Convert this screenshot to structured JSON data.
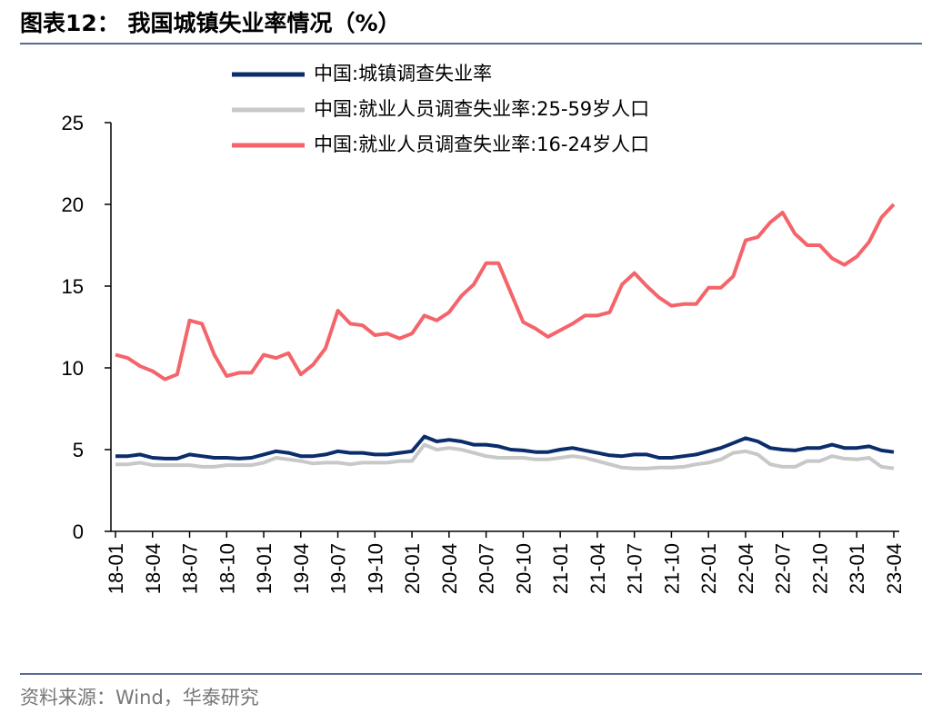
{
  "chart_data": {
    "type": "line",
    "title": "图表12：  我国城镇失业率情况（%）",
    "source": "资料来源：Wind，华泰研究",
    "categories": [
      "18-01",
      null,
      null,
      "18-04",
      null,
      null,
      "18-07",
      null,
      null,
      "18-10",
      null,
      null,
      "19-01",
      null,
      null,
      "19-04",
      null,
      null,
      "19-07",
      null,
      null,
      "19-10",
      null,
      null,
      "20-01",
      null,
      null,
      "20-04",
      null,
      null,
      "20-07",
      null,
      null,
      "20-10",
      null,
      null,
      "21-01",
      null,
      null,
      "21-04",
      null,
      null,
      "21-07",
      null,
      null,
      "21-10",
      null,
      null,
      "22-01",
      null,
      null,
      "22-04",
      null,
      null,
      "22-07",
      null,
      null,
      "22-10",
      null,
      null,
      "23-01",
      null,
      null,
      "23-04"
    ],
    "series": [
      {
        "name": "中国:城镇调查失业率",
        "color": "#0c2d6b",
        "values": [
          4.6,
          4.6,
          4.7,
          4.5,
          4.45,
          4.45,
          4.7,
          4.6,
          4.5,
          4.5,
          4.45,
          4.5,
          4.7,
          4.9,
          4.8,
          4.6,
          4.6,
          4.7,
          4.9,
          4.8,
          4.8,
          4.7,
          4.7,
          4.8,
          4.9,
          5.8,
          5.5,
          5.6,
          5.5,
          5.3,
          5.3,
          5.2,
          5.0,
          4.95,
          4.85,
          4.85,
          5.0,
          5.1,
          4.95,
          4.8,
          4.65,
          4.6,
          4.7,
          4.7,
          4.5,
          4.5,
          4.6,
          4.7,
          4.9,
          5.1,
          5.4,
          5.7,
          5.5,
          5.1,
          5.0,
          4.95,
          5.1,
          5.1,
          5.3,
          5.1,
          5.1,
          5.2,
          4.95,
          4.85
        ]
      },
      {
        "name": "中国:就业人员调查失业率:25-59岁人口",
        "color": "#c8c8c8",
        "values": [
          4.1,
          4.1,
          4.2,
          4.05,
          4.05,
          4.05,
          4.05,
          3.95,
          3.95,
          4.05,
          4.05,
          4.05,
          4.2,
          4.5,
          4.4,
          4.3,
          4.15,
          4.2,
          4.2,
          4.1,
          4.2,
          4.2,
          4.2,
          4.3,
          4.3,
          5.3,
          5.0,
          5.1,
          5.0,
          4.8,
          4.6,
          4.5,
          4.5,
          4.5,
          4.4,
          4.4,
          4.5,
          4.6,
          4.5,
          4.3,
          4.1,
          3.9,
          3.85,
          3.85,
          3.9,
          3.9,
          3.95,
          4.1,
          4.2,
          4.4,
          4.8,
          4.9,
          4.7,
          4.1,
          3.95,
          3.95,
          4.3,
          4.3,
          4.6,
          4.45,
          4.4,
          4.5,
          3.95,
          3.85
        ]
      },
      {
        "name": "中国:就业人员调查失业率:16-24岁人口",
        "color": "#f4646a",
        "values": [
          10.8,
          10.6,
          10.1,
          9.8,
          9.3,
          9.6,
          12.9,
          12.7,
          10.8,
          9.5,
          9.7,
          9.7,
          10.8,
          10.6,
          10.9,
          9.6,
          10.2,
          11.2,
          13.5,
          12.7,
          12.6,
          12.0,
          12.1,
          11.8,
          12.1,
          13.2,
          12.9,
          13.4,
          14.4,
          15.1,
          16.4,
          16.4,
          14.6,
          12.8,
          12.4,
          11.9,
          12.3,
          12.7,
          13.2,
          13.2,
          13.4,
          15.1,
          15.8,
          15.0,
          14.3,
          13.8,
          13.9,
          13.9,
          14.9,
          14.9,
          15.6,
          17.8,
          18.0,
          18.9,
          19.5,
          18.2,
          17.5,
          17.5,
          16.7,
          16.3,
          16.8,
          17.7,
          19.2,
          20.0
        ]
      }
    ],
    "ylim": [
      0,
      25
    ],
    "yticks": [
      0,
      5,
      10,
      15,
      20,
      25
    ]
  }
}
